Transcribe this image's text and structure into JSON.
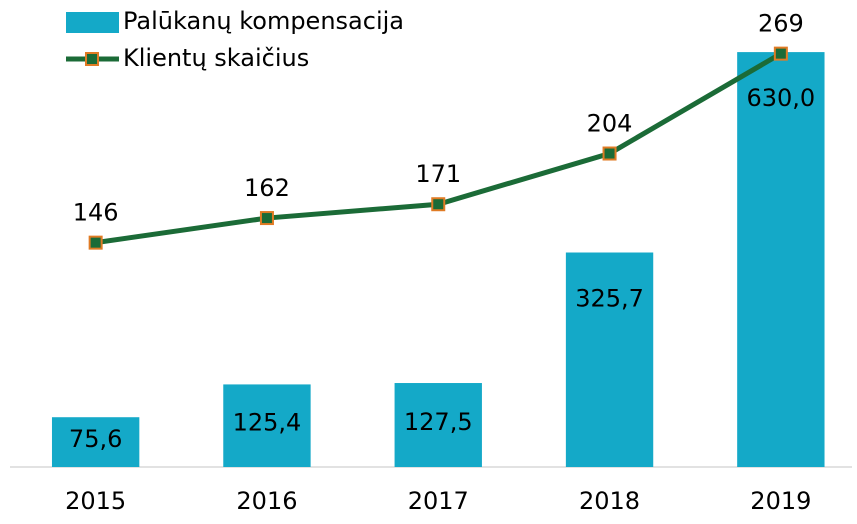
{
  "chart_data": {
    "type": "bar",
    "categories": [
      "2015",
      "2016",
      "2017",
      "2018",
      "2019"
    ],
    "series": [
      {
        "name": "Palūkanų kompensacija",
        "type": "bar",
        "color": "#14a9c8",
        "values": [
          75.6,
          125.4,
          127.5,
          325.7,
          630.0
        ],
        "value_labels": [
          "75,6",
          "125,4",
          "127,5",
          "325,7",
          "630,0"
        ]
      },
      {
        "name": "Klientų skaičius",
        "type": "line",
        "axis": "y2",
        "color": "#1b6b37",
        "marker_edge_color": "#e07b24",
        "values": [
          146,
          162,
          171,
          204,
          269
        ]
      }
    ],
    "ylim": [
      0,
      700
    ],
    "y2lim": [
      0,
      300
    ]
  }
}
